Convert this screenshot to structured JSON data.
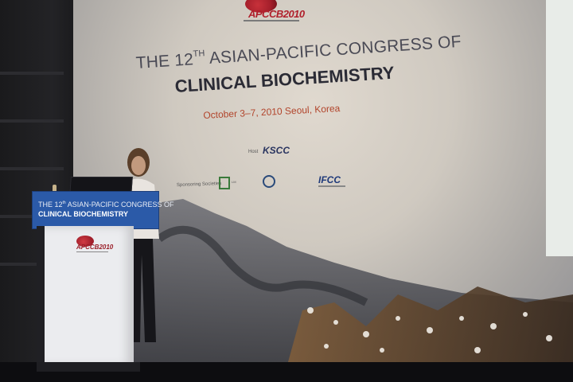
{
  "photo": {
    "description_label": "Conference presentation photo",
    "screen": {
      "logo": {
        "text": "APCCB2010"
      },
      "title_line1_prefix": "THE 12",
      "title_line1_sup": "TH",
      "title_line1_suffix": " ASIAN-PACIFIC CONGRESS OF",
      "title_line2": "CLINICAL BIOCHEMISTRY",
      "date_location": "October 3–7, 2010  Seoul, Korea",
      "host_label": "Host",
      "host_logo": "KSCC",
      "sponsoring_label": "Sponsoring Societies",
      "sponsor_logos": [
        "LM",
        "IFCC"
      ]
    },
    "podium": {
      "line1_prefix": "THE 12",
      "line1_sup": "th",
      "line1_suffix": " ASIAN-PACIFIC CONGRESS OF",
      "line2": "CLINICAL BIOCHEMISTRY",
      "logo_text": "APCCB2010"
    },
    "colors": {
      "accent_red": "#b0202c",
      "podium_blue": "#2b5aa8",
      "date_orange": "#b2452c"
    }
  }
}
